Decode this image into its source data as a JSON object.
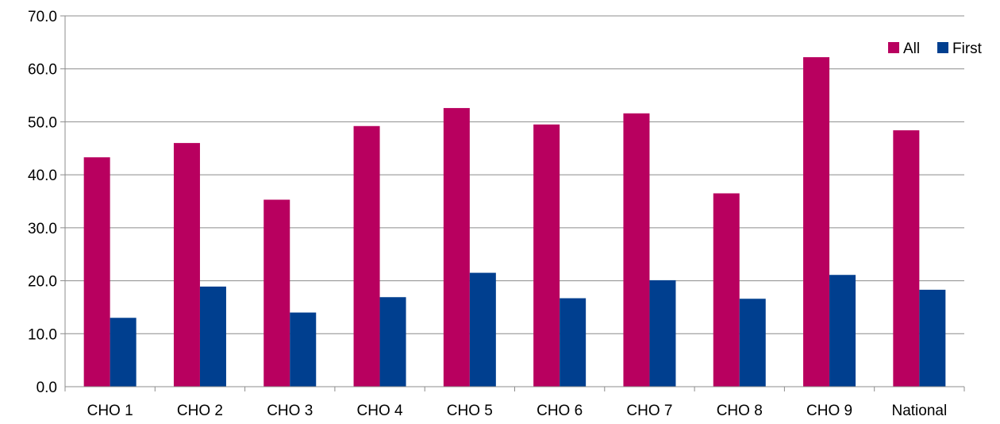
{
  "chart_data": {
    "type": "bar",
    "title": "",
    "xlabel": "",
    "ylabel": "",
    "categories": [
      "CHO 1",
      "CHO 2",
      "CHO 3",
      "CHO 4",
      "CHO 5",
      "CHO 6",
      "CHO 7",
      "CHO 8",
      "CHO 9",
      "National"
    ],
    "series": [
      {
        "name": "All",
        "color": "#b8005f",
        "values": [
          43.3,
          46.0,
          35.3,
          49.2,
          52.6,
          49.5,
          51.6,
          36.5,
          62.2,
          48.4
        ]
      },
      {
        "name": "First",
        "color": "#003f8f",
        "values": [
          13.0,
          18.9,
          14.0,
          16.9,
          21.5,
          16.7,
          20.1,
          16.6,
          21.1,
          18.3
        ]
      }
    ],
    "ylim": [
      0,
      70
    ],
    "yticks": [
      "0.0",
      "10.0",
      "20.0",
      "30.0",
      "40.0",
      "50.0",
      "60.0",
      "70.0"
    ],
    "grid": true,
    "legend": "top-right"
  }
}
